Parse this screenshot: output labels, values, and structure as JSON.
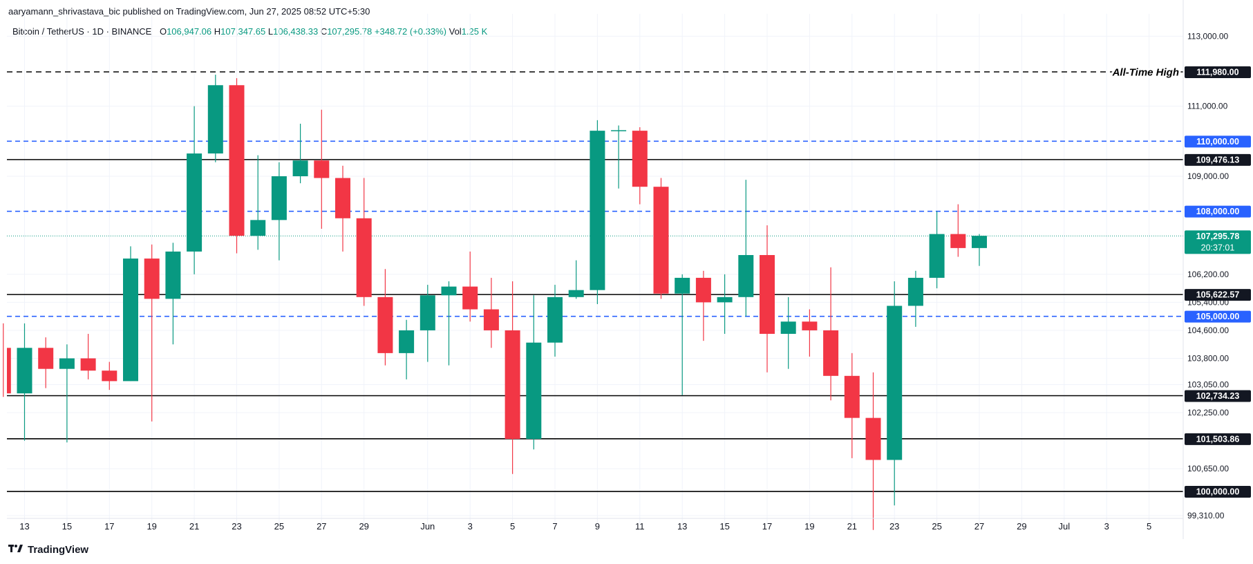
{
  "publisher": "aaryamann_shrivastava_bic published on TradingView.com, Jun 27, 2025 08:52 UTC+5:30",
  "legend": {
    "symbol": "Bitcoin / TetherUS · 1D · BINANCE",
    "o_label": "O",
    "o": "106,947.06",
    "h_label": "H",
    "h": "107,347.65",
    "l_label": "L",
    "l": "106,438.33",
    "c_label": "C",
    "c": "107,295.78",
    "change": "+348.72 (+0.33%)",
    "vol_label": "Vol",
    "vol": "1.25 K"
  },
  "brand": "TradingView",
  "colors": {
    "up": "#089981",
    "down": "#f23645",
    "blue_line": "#2962ff",
    "black": "#000000",
    "grid": "#f0f3fa"
  },
  "chart_data": {
    "type": "candlestick",
    "symbol": "Bitcoin / TetherUS",
    "interval": "1D",
    "exchange": "BINANCE",
    "ylim": [
      98800,
      113000
    ],
    "y_ticks": [
      "113,000.00",
      "111,000.00",
      "109,000.00",
      "106,200.00",
      "105,400.00",
      "104,600.00",
      "103,800.00",
      "103,050.00",
      "102,250.00",
      "100,650.00",
      "99,310.00"
    ],
    "x_tick_labels": [
      {
        "date": "2025-05-13",
        "label": "13"
      },
      {
        "date": "2025-05-15",
        "label": "15"
      },
      {
        "date": "2025-05-17",
        "label": "17"
      },
      {
        "date": "2025-05-19",
        "label": "19"
      },
      {
        "date": "2025-05-21",
        "label": "21"
      },
      {
        "date": "2025-05-23",
        "label": "23"
      },
      {
        "date": "2025-05-25",
        "label": "25"
      },
      {
        "date": "2025-05-27",
        "label": "27"
      },
      {
        "date": "2025-05-29",
        "label": "29"
      },
      {
        "date": "2025-06-01",
        "label": "Jun"
      },
      {
        "date": "2025-06-03",
        "label": "3"
      },
      {
        "date": "2025-06-05",
        "label": "5"
      },
      {
        "date": "2025-06-07",
        "label": "7"
      },
      {
        "date": "2025-06-09",
        "label": "9"
      },
      {
        "date": "2025-06-11",
        "label": "11"
      },
      {
        "date": "2025-06-13",
        "label": "13"
      },
      {
        "date": "2025-06-15",
        "label": "15"
      },
      {
        "date": "2025-06-17",
        "label": "17"
      },
      {
        "date": "2025-06-19",
        "label": "19"
      },
      {
        "date": "2025-06-21",
        "label": "21"
      },
      {
        "date": "2025-06-23",
        "label": "23"
      },
      {
        "date": "2025-06-25",
        "label": "25"
      },
      {
        "date": "2025-06-27",
        "label": "27"
      },
      {
        "date": "2025-06-29",
        "label": "29"
      },
      {
        "date": "2025-07-01",
        "label": "Jul"
      },
      {
        "date": "2025-07-03",
        "label": "3"
      },
      {
        "date": "2025-07-05",
        "label": "5"
      }
    ],
    "candles": [
      {
        "date": "2025-05-12",
        "o": 104100,
        "h": 104800,
        "l": 102700,
        "c": 102800
      },
      {
        "date": "2025-05-13",
        "o": 102800,
        "h": 104800,
        "l": 101450,
        "c": 104100
      },
      {
        "date": "2025-05-14",
        "o": 104100,
        "h": 104400,
        "l": 102950,
        "c": 103500
      },
      {
        "date": "2025-05-15",
        "o": 103500,
        "h": 104200,
        "l": 101400,
        "c": 103800
      },
      {
        "date": "2025-05-16",
        "o": 103800,
        "h": 104500,
        "l": 103200,
        "c": 103450
      },
      {
        "date": "2025-05-17",
        "o": 103450,
        "h": 103700,
        "l": 102900,
        "c": 103150
      },
      {
        "date": "2025-05-18",
        "o": 103150,
        "h": 107000,
        "l": 103150,
        "c": 106650
      },
      {
        "date": "2025-05-19",
        "o": 106650,
        "h": 107050,
        "l": 102000,
        "c": 105500
      },
      {
        "date": "2025-05-20",
        "o": 105500,
        "h": 107100,
        "l": 104200,
        "c": 106850
      },
      {
        "date": "2025-05-21",
        "o": 106850,
        "h": 111000,
        "l": 106200,
        "c": 109650
      },
      {
        "date": "2025-05-22",
        "o": 109650,
        "h": 111900,
        "l": 109400,
        "c": 111600
      },
      {
        "date": "2025-05-23",
        "o": 111600,
        "h": 111800,
        "l": 106800,
        "c": 107300
      },
      {
        "date": "2025-05-24",
        "o": 107300,
        "h": 109600,
        "l": 106900,
        "c": 107750
      },
      {
        "date": "2025-05-25",
        "o": 107750,
        "h": 109400,
        "l": 106600,
        "c": 109000
      },
      {
        "date": "2025-05-26",
        "o": 109000,
        "h": 110500,
        "l": 108800,
        "c": 109450
      },
      {
        "date": "2025-05-27",
        "o": 109450,
        "h": 110900,
        "l": 107500,
        "c": 108950
      },
      {
        "date": "2025-05-28",
        "o": 108950,
        "h": 109300,
        "l": 106850,
        "c": 107800
      },
      {
        "date": "2025-05-29",
        "o": 107800,
        "h": 108950,
        "l": 105300,
        "c": 105550
      },
      {
        "date": "2025-05-30",
        "o": 105550,
        "h": 106350,
        "l": 103600,
        "c": 103950
      },
      {
        "date": "2025-05-31",
        "o": 103950,
        "h": 104900,
        "l": 103200,
        "c": 104600
      },
      {
        "date": "2025-06-01",
        "o": 104600,
        "h": 105900,
        "l": 103700,
        "c": 105600
      },
      {
        "date": "2025-06-02",
        "o": 105600,
        "h": 106000,
        "l": 103600,
        "c": 105850
      },
      {
        "date": "2025-06-03",
        "o": 105850,
        "h": 106850,
        "l": 104850,
        "c": 105200
      },
      {
        "date": "2025-06-04",
        "o": 105200,
        "h": 106100,
        "l": 104100,
        "c": 104600
      },
      {
        "date": "2025-06-05",
        "o": 104600,
        "h": 106000,
        "l": 100500,
        "c": 101500
      },
      {
        "date": "2025-06-06",
        "o": 101500,
        "h": 105600,
        "l": 101200,
        "c": 104250
      },
      {
        "date": "2025-06-07",
        "o": 104250,
        "h": 105900,
        "l": 103850,
        "c": 105550
      },
      {
        "date": "2025-06-08",
        "o": 105550,
        "h": 106600,
        "l": 105500,
        "c": 105750
      },
      {
        "date": "2025-06-09",
        "o": 105750,
        "h": 110600,
        "l": 105350,
        "c": 110300
      },
      {
        "date": "2025-06-10",
        "o": 110300,
        "h": 110450,
        "l": 108650,
        "c": 110300
      },
      {
        "date": "2025-06-11",
        "o": 110300,
        "h": 110400,
        "l": 108200,
        "c": 108700
      },
      {
        "date": "2025-06-12",
        "o": 108700,
        "h": 108950,
        "l": 105500,
        "c": 105650
      },
      {
        "date": "2025-06-13",
        "o": 105650,
        "h": 106200,
        "l": 102750,
        "c": 106100
      },
      {
        "date": "2025-06-14",
        "o": 106100,
        "h": 106300,
        "l": 104300,
        "c": 105400
      },
      {
        "date": "2025-06-15",
        "o": 105400,
        "h": 106200,
        "l": 104500,
        "c": 105550
      },
      {
        "date": "2025-06-16",
        "o": 105550,
        "h": 108900,
        "l": 105000,
        "c": 106750
      },
      {
        "date": "2025-06-17",
        "o": 106750,
        "h": 107600,
        "l": 103400,
        "c": 104500
      },
      {
        "date": "2025-06-18",
        "o": 104500,
        "h": 105550,
        "l": 103500,
        "c": 104850
      },
      {
        "date": "2025-06-19",
        "o": 104850,
        "h": 105200,
        "l": 103850,
        "c": 104600
      },
      {
        "date": "2025-06-20",
        "o": 104600,
        "h": 106400,
        "l": 102600,
        "c": 103300
      },
      {
        "date": "2025-06-21",
        "o": 103300,
        "h": 103950,
        "l": 100950,
        "c": 102100
      },
      {
        "date": "2025-06-22",
        "o": 102100,
        "h": 103400,
        "l": 98900,
        "c": 100900
      },
      {
        "date": "2025-06-23",
        "o": 100900,
        "h": 106000,
        "l": 99600,
        "c": 105300
      },
      {
        "date": "2025-06-24",
        "o": 105300,
        "h": 106300,
        "l": 104700,
        "c": 106100
      },
      {
        "date": "2025-06-25",
        "o": 106100,
        "h": 108000,
        "l": 105800,
        "c": 107350
      },
      {
        "date": "2025-06-26",
        "o": 107350,
        "h": 108200,
        "l": 106700,
        "c": 106950
      },
      {
        "date": "2025-06-27",
        "o": 106950,
        "h": 107350,
        "l": 106440,
        "c": 107300
      }
    ],
    "levels": [
      {
        "value": 111980,
        "label": "111,980.00",
        "style": "dashed",
        "color": "#000000",
        "annotation": "All-Time High"
      },
      {
        "value": 110000,
        "label": "110,000.00",
        "style": "dashed",
        "color": "#2962ff"
      },
      {
        "value": 109476.13,
        "label": "109,476.13",
        "style": "solid",
        "color": "#000000"
      },
      {
        "value": 108000,
        "label": "108,000.00",
        "style": "dashed",
        "color": "#2962ff"
      },
      {
        "value": 105622.57,
        "label": "105,622.57",
        "style": "solid",
        "color": "#000000"
      },
      {
        "value": 105000,
        "label": "105,000.00",
        "style": "dashed",
        "color": "#2962ff"
      },
      {
        "value": 102734.23,
        "label": "102,734.23",
        "style": "solid",
        "color": "#000000"
      },
      {
        "value": 101503.86,
        "label": "101,503.86",
        "style": "solid",
        "color": "#000000"
      },
      {
        "value": 100000,
        "label": "100,000.00",
        "style": "solid",
        "color": "#000000"
      }
    ],
    "last_price": {
      "value": 107295.78,
      "label": "107,295.78",
      "countdown": "20:37:01",
      "color": "#089981"
    }
  }
}
